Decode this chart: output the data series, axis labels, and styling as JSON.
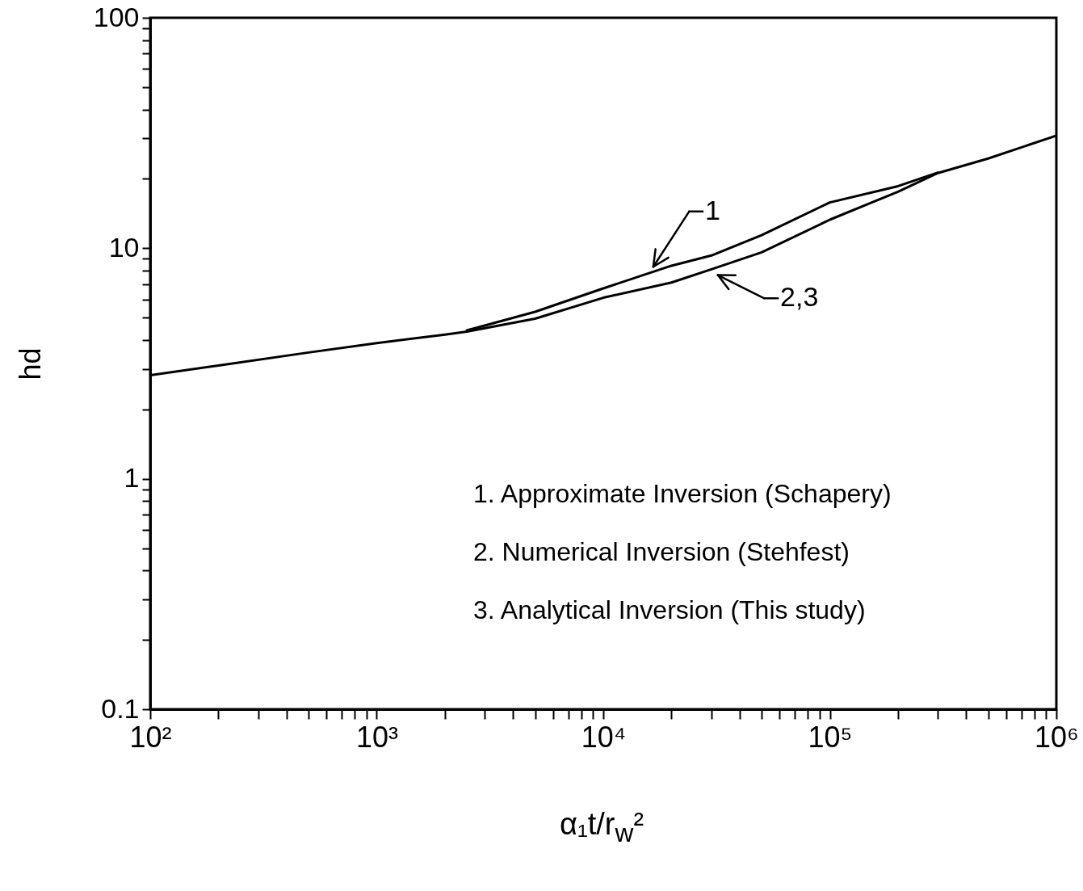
{
  "chart_data": {
    "type": "line",
    "xlabel": "α₁t/r$_{w}$²",
    "ylabel": "hd",
    "log": "xy",
    "line_style": "solid",
    "x": [
      100,
      200,
      500,
      1000,
      2000,
      2500,
      5000,
      10000,
      20000,
      30000,
      50000,
      100000,
      200000,
      300000,
      500000,
      1000000
    ],
    "series": [
      {
        "color": "#000000",
        "values": [
          null,
          null,
          null,
          null,
          null,
          4.4,
          5.3,
          6.7,
          8.4,
          9.3,
          11.4,
          15.8,
          18.6,
          21.3,
          null,
          null
        ]
      },
      {
        "color": "#000000",
        "values": [
          2.81,
          3.1,
          3.53,
          3.88,
          4.22,
          4.35,
          4.95,
          6.1,
          7.1,
          8.1,
          9.6,
          13.3,
          17.6,
          21.2,
          24.5,
          30.8
        ]
      }
    ],
    "xlim": [
      100,
      1000000
    ],
    "ylim": [
      0.1,
      100
    ],
    "xticks": [
      {
        "value": 100,
        "label": "10²"
      },
      {
        "value": 1000,
        "label": "10³"
      },
      {
        "value": 10000,
        "label": "10⁴"
      },
      {
        "value": 100000,
        "label": "10⁵"
      },
      {
        "value": 1000000,
        "label": "10⁶"
      }
    ],
    "yticks": [
      0.1,
      1,
      10,
      100
    ],
    "annotations": [
      {
        "text": "1",
        "x": 15800,
        "y": 7.7
      },
      {
        "text": "2,3",
        "x": 30000,
        "y": 7.9
      },
      "1.  Approximate  Inversion  (Schapery)",
      "2.  Numerical  Inversion  (Stehfest)",
      "3.  Analytical  Inversion  (This study)"
    ]
  }
}
